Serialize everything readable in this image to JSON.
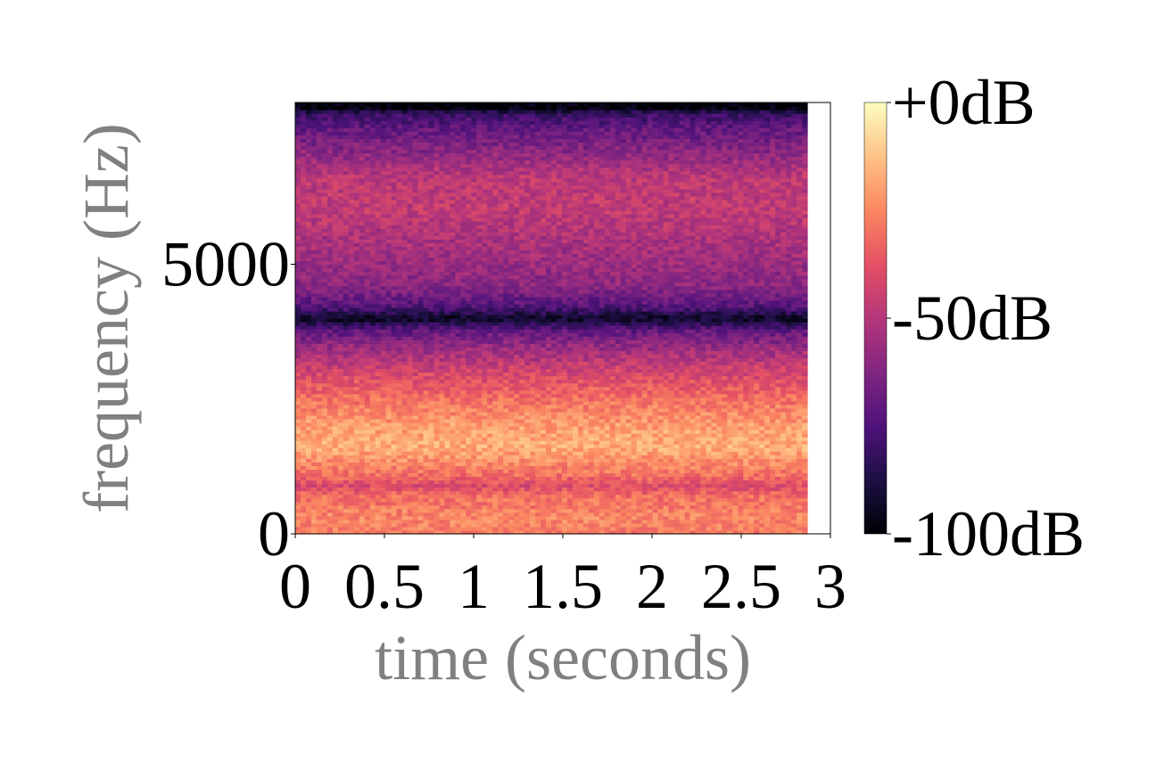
{
  "chart_data": {
    "type": "heatmap",
    "title": "",
    "xlabel": "time (seconds)",
    "ylabel": "frequency (Hz)",
    "xlim": [
      0,
      3
    ],
    "ylim": [
      0,
      8000
    ],
    "x_ticks": [
      {
        "value": 0,
        "label": "0"
      },
      {
        "value": 0.5,
        "label": "0.5"
      },
      {
        "value": 1,
        "label": "1"
      },
      {
        "value": 1.5,
        "label": "1.5"
      },
      {
        "value": 2,
        "label": "2"
      },
      {
        "value": 2.5,
        "label": "2.5"
      },
      {
        "value": 3,
        "label": "3"
      }
    ],
    "y_ticks": [
      {
        "value": 0,
        "label": "0"
      },
      {
        "value": 5000,
        "label": "5000"
      }
    ],
    "data_extent_seconds": [
      0,
      2.87
    ],
    "colormap": "magma",
    "colorbar": {
      "range_db": [
        -100,
        0
      ],
      "ticks": [
        {
          "value": 0,
          "label": "+0dB"
        },
        {
          "value": -50,
          "label": "-50dB"
        },
        {
          "value": -100,
          "label": "-100dB"
        }
      ]
    },
    "frequency_profile_db": [
      {
        "freq": 0,
        "db": -28
      },
      {
        "freq": 300,
        "db": -25
      },
      {
        "freq": 700,
        "db": -30
      },
      {
        "freq": 900,
        "db": -40
      },
      {
        "freq": 1100,
        "db": -30
      },
      {
        "freq": 1600,
        "db": -17
      },
      {
        "freq": 2000,
        "db": -20
      },
      {
        "freq": 2500,
        "db": -30
      },
      {
        "freq": 3000,
        "db": -42
      },
      {
        "freq": 3500,
        "db": -58
      },
      {
        "freq": 3800,
        "db": -72
      },
      {
        "freq": 4000,
        "db": -95
      },
      {
        "freq": 4200,
        "db": -75
      },
      {
        "freq": 4600,
        "db": -60
      },
      {
        "freq": 5200,
        "db": -55
      },
      {
        "freq": 6000,
        "db": -47
      },
      {
        "freq": 6600,
        "db": -48
      },
      {
        "freq": 7000,
        "db": -58
      },
      {
        "freq": 7500,
        "db": -70
      },
      {
        "freq": 7800,
        "db": -80
      },
      {
        "freq": 7900,
        "db": -98
      },
      {
        "freq": 8000,
        "db": -100
      }
    ]
  }
}
